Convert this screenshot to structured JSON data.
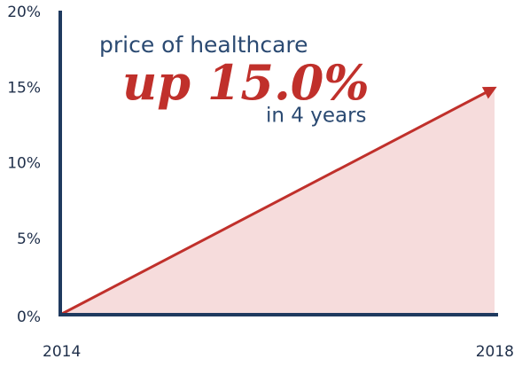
{
  "chart_data": {
    "type": "area",
    "annotations": [
      "price of healthcare",
      "up 15.0%",
      "in 4 years"
    ],
    "x": [
      2014,
      2018
    ],
    "values": [
      0,
      15
    ],
    "xlim": [
      2014,
      2018
    ],
    "xticks": [
      2014,
      2018
    ],
    "ylim": [
      0,
      20
    ],
    "yticks": [
      {
        "value": 0,
        "label": "0%"
      },
      {
        "value": 5,
        "label": "5%"
      },
      {
        "value": 10,
        "label": "10%"
      },
      {
        "value": 15,
        "label": "15%"
      },
      {
        "value": 20,
        "label": "20%"
      }
    ],
    "color": "#c0302b",
    "fill_color": "#f6dcdc",
    "grid": false
  }
}
